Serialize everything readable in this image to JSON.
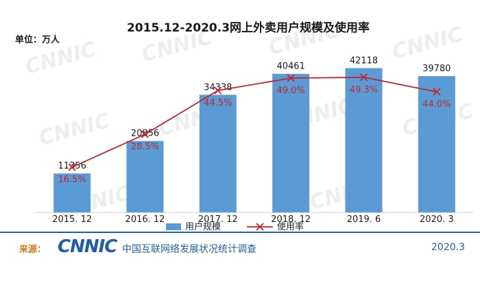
{
  "chart_data": {
    "type": "bar",
    "title": "2015.12-2020.3网上外卖用户规模及使用率",
    "unit_label": "单位：万人",
    "categories": [
      "2015. 12",
      "2016. 12",
      "2017. 12",
      "2018. 12",
      "2019. 6",
      "2020. 3"
    ],
    "series": [
      {
        "name": "用户规模",
        "type": "bar",
        "values": [
          11356,
          20856,
          34338,
          40461,
          42118,
          39780
        ],
        "labels": [
          "11356",
          "20856",
          "34338",
          "40461",
          "42118",
          "39780"
        ],
        "color": "#5b9bd5"
      },
      {
        "name": "使用率",
        "type": "line",
        "values": [
          16.5,
          28.5,
          44.5,
          49.0,
          49.3,
          44.0
        ],
        "labels": [
          "16.5%",
          "28.5%",
          "44.5%",
          "49.0%",
          "49.3%",
          "44.0%"
        ],
        "color": "#c0272d"
      }
    ],
    "ylim_bar": [
      0,
      48000
    ],
    "ylim_line": [
      0,
      60
    ],
    "legend_position": "bottom",
    "grid": false
  },
  "footer": {
    "source_label": "来源：",
    "logo_text": "CNNIC",
    "org_name": "中国互联网络发展状况统计调查",
    "date": "2020.3"
  },
  "watermark": {
    "text": "CNNIC"
  }
}
